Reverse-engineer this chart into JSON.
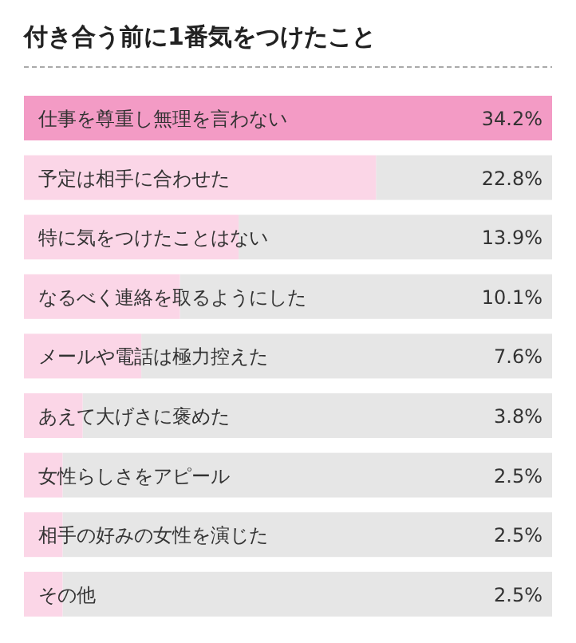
{
  "chart_data": {
    "type": "bar",
    "orientation": "horizontal",
    "title": "付き合う前に1番気をつけたこと",
    "categories": [
      "仕事を尊重し無理を言わない",
      "予定は相手に合わせた",
      "特に気をつけたことはない",
      "なるべく連絡を取るようにした",
      "メールや電話は極力控えた",
      "あえて大げさに褒めた",
      "女性らしさをアピール",
      "相手の好みの女性を演じた",
      "その他"
    ],
    "values": [
      34.2,
      22.8,
      13.9,
      10.1,
      7.6,
      3.8,
      2.5,
      2.5,
      2.5
    ],
    "value_labels": [
      "34.2%",
      "22.8%",
      "13.9%",
      "10.1%",
      "7.6%",
      "3.8%",
      "2.5%",
      "2.5%",
      "2.5%"
    ],
    "colors": [
      "#f39bc5",
      "#fbd6e7",
      "#fbd6e7",
      "#fbd6e7",
      "#fbd6e7",
      "#fbd6e7",
      "#fbd6e7",
      "#fbd6e7",
      "#fbd6e7"
    ]
  }
}
